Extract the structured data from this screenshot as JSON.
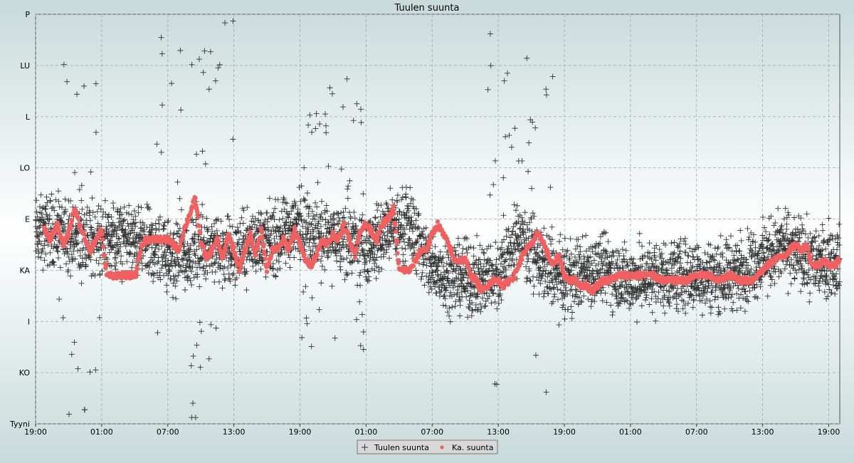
{
  "chart_data": {
    "type": "scatter",
    "title": "Tuulen suunta",
    "grid": true,
    "legend_placement": "bottom-center",
    "y_ticks": [
      "P",
      "LU",
      "L",
      "LO",
      "E",
      "KA",
      "I",
      "KO",
      "Tyyni"
    ],
    "x_ticks": [
      "19:00",
      "01:00",
      "07:00",
      "13:00",
      "19:00",
      "01:00",
      "07:00",
      "13:00",
      "19:00",
      "01:00",
      "07:00",
      "13:00",
      "19:00"
    ],
    "xlim_hours": [
      0,
      73
    ],
    "series": [
      {
        "name": "Tuulen suunta",
        "marker": "plus",
        "color": "#333333",
        "approx_points_per_hour": 60,
        "center_path": [
          [
            0,
            3.7
          ],
          [
            1.5,
            3.8
          ],
          [
            3,
            3.6
          ],
          [
            6,
            3.6
          ],
          [
            8,
            3.6
          ],
          [
            10,
            3.5
          ],
          [
            12,
            3.3
          ],
          [
            14,
            3.3
          ],
          [
            16,
            3.5
          ],
          [
            18,
            3.3
          ],
          [
            20,
            3.6
          ],
          [
            22,
            3.6
          ],
          [
            24,
            3.9
          ],
          [
            26,
            3.6
          ],
          [
            28,
            3.7
          ],
          [
            30,
            3.4
          ],
          [
            32,
            3.8
          ],
          [
            34,
            3.9
          ],
          [
            36,
            3.0
          ],
          [
            40,
            2.8
          ],
          [
            42,
            3.0
          ],
          [
            44,
            3.7
          ],
          [
            46,
            3.1
          ],
          [
            48,
            2.8
          ],
          [
            50,
            3.0
          ],
          [
            52,
            3.0
          ],
          [
            54,
            2.8
          ],
          [
            56,
            2.9
          ],
          [
            58,
            2.9
          ],
          [
            60,
            2.9
          ],
          [
            62,
            2.9
          ],
          [
            64,
            3.0
          ],
          [
            66,
            3.2
          ],
          [
            68,
            3.5
          ],
          [
            70,
            3.2
          ],
          [
            73,
            3.2
          ]
        ],
        "spread": 0.55,
        "outlier_ranges": [
          [
            2,
            6,
            0.0,
            7.6
          ],
          [
            11,
            18,
            0.1,
            8.0
          ],
          [
            24,
            30,
            1.4,
            6.8
          ],
          [
            41,
            47,
            0.6,
            7.8
          ]
        ]
      },
      {
        "name": "Ka. suunta",
        "marker": "circle",
        "color": "#f06060",
        "points": [
          [
            0.8,
            3.8
          ],
          [
            1.3,
            3.6
          ],
          [
            2.0,
            3.9
          ],
          [
            2.5,
            3.5
          ],
          [
            3.0,
            3.7
          ],
          [
            3.5,
            4.2
          ],
          [
            4.0,
            3.9
          ],
          [
            4.5,
            3.6
          ],
          [
            5.0,
            3.4
          ],
          [
            5.5,
            3.6
          ],
          [
            6.0,
            3.8
          ],
          [
            6.2,
            3.3
          ],
          [
            6.5,
            2.9
          ],
          [
            7.0,
            2.9
          ],
          [
            8.0,
            2.9
          ],
          [
            9.0,
            2.9
          ],
          [
            9.2,
            3.0
          ],
          [
            9.5,
            3.4
          ],
          [
            10.0,
            3.6
          ],
          [
            11.0,
            3.6
          ],
          [
            12.0,
            3.6
          ],
          [
            12.5,
            3.5
          ],
          [
            13.0,
            3.4
          ],
          [
            13.5,
            3.8
          ],
          [
            14.0,
            4.1
          ],
          [
            14.5,
            4.4
          ],
          [
            15.0,
            3.6
          ],
          [
            15.5,
            3.2
          ],
          [
            16.0,
            3.4
          ],
          [
            16.5,
            3.6
          ],
          [
            17.0,
            3.2
          ],
          [
            17.5,
            3.7
          ],
          [
            18.0,
            3.4
          ],
          [
            18.5,
            3.0
          ],
          [
            19.0,
            3.4
          ],
          [
            19.5,
            3.7
          ],
          [
            20.0,
            3.3
          ],
          [
            20.5,
            3.8
          ],
          [
            21.0,
            3.0
          ],
          [
            21.5,
            3.4
          ],
          [
            22.0,
            3.4
          ],
          [
            22.5,
            3.6
          ],
          [
            23.0,
            3.4
          ],
          [
            23.5,
            3.8
          ],
          [
            24.0,
            3.5
          ],
          [
            24.5,
            3.2
          ],
          [
            25.0,
            3.1
          ],
          [
            25.5,
            3.3
          ],
          [
            26.0,
            3.6
          ],
          [
            26.5,
            3.5
          ],
          [
            27.0,
            3.7
          ],
          [
            27.5,
            3.6
          ],
          [
            28.0,
            3.9
          ],
          [
            28.5,
            3.6
          ],
          [
            29.0,
            3.3
          ],
          [
            29.5,
            3.8
          ],
          [
            30.0,
            3.9
          ],
          [
            31.0,
            3.6
          ],
          [
            31.5,
            3.9
          ],
          [
            32.0,
            4.0
          ],
          [
            32.5,
            4.2
          ],
          [
            33.0,
            3.0
          ],
          [
            34.0,
            3.0
          ],
          [
            35.0,
            3.4
          ],
          [
            35.5,
            3.4
          ],
          [
            36.0,
            3.7
          ],
          [
            36.5,
            3.9
          ],
          [
            37.0,
            3.7
          ],
          [
            37.5,
            3.5
          ],
          [
            38.0,
            3.2
          ],
          [
            38.5,
            3.2
          ],
          [
            39.0,
            3.2
          ],
          [
            39.5,
            2.9
          ],
          [
            40.0,
            2.8
          ],
          [
            40.5,
            2.6
          ],
          [
            41.0,
            2.7
          ],
          [
            41.5,
            2.8
          ],
          [
            42.0,
            2.8
          ],
          [
            42.5,
            2.7
          ],
          [
            43.0,
            2.8
          ],
          [
            43.5,
            2.9
          ],
          [
            44.0,
            3.2
          ],
          [
            44.5,
            3.4
          ],
          [
            45.0,
            3.5
          ],
          [
            45.5,
            3.7
          ],
          [
            46.0,
            3.6
          ],
          [
            46.5,
            3.3
          ],
          [
            47.0,
            3.1
          ],
          [
            47.5,
            3.3
          ],
          [
            48.0,
            2.9
          ],
          [
            48.5,
            2.8
          ],
          [
            49.0,
            2.8
          ],
          [
            49.5,
            2.7
          ],
          [
            50.0,
            2.7
          ],
          [
            50.5,
            2.6
          ],
          [
            51.0,
            2.7
          ],
          [
            51.5,
            2.8
          ],
          [
            52.0,
            2.8
          ],
          [
            53.0,
            2.9
          ],
          [
            54.0,
            2.9
          ],
          [
            55.0,
            2.9
          ],
          [
            56.0,
            2.9
          ],
          [
            57.0,
            2.8
          ],
          [
            58.0,
            2.8
          ],
          [
            59.0,
            2.8
          ],
          [
            60.0,
            2.9
          ],
          [
            61.0,
            2.9
          ],
          [
            62.0,
            2.8
          ],
          [
            63.0,
            2.9
          ],
          [
            64.0,
            2.8
          ],
          [
            65.0,
            2.8
          ],
          [
            66.0,
            3.0
          ],
          [
            67.0,
            3.2
          ],
          [
            68.0,
            3.3
          ],
          [
            69.0,
            3.5
          ],
          [
            69.5,
            3.4
          ],
          [
            70.0,
            3.5
          ],
          [
            70.5,
            3.1
          ],
          [
            71.0,
            3.1
          ],
          [
            71.5,
            3.2
          ],
          [
            72.0,
            3.1
          ],
          [
            72.5,
            3.1
          ],
          [
            73.0,
            3.2
          ]
        ],
        "scale": "0 = Tyyni ... 8 = P"
      }
    ]
  }
}
